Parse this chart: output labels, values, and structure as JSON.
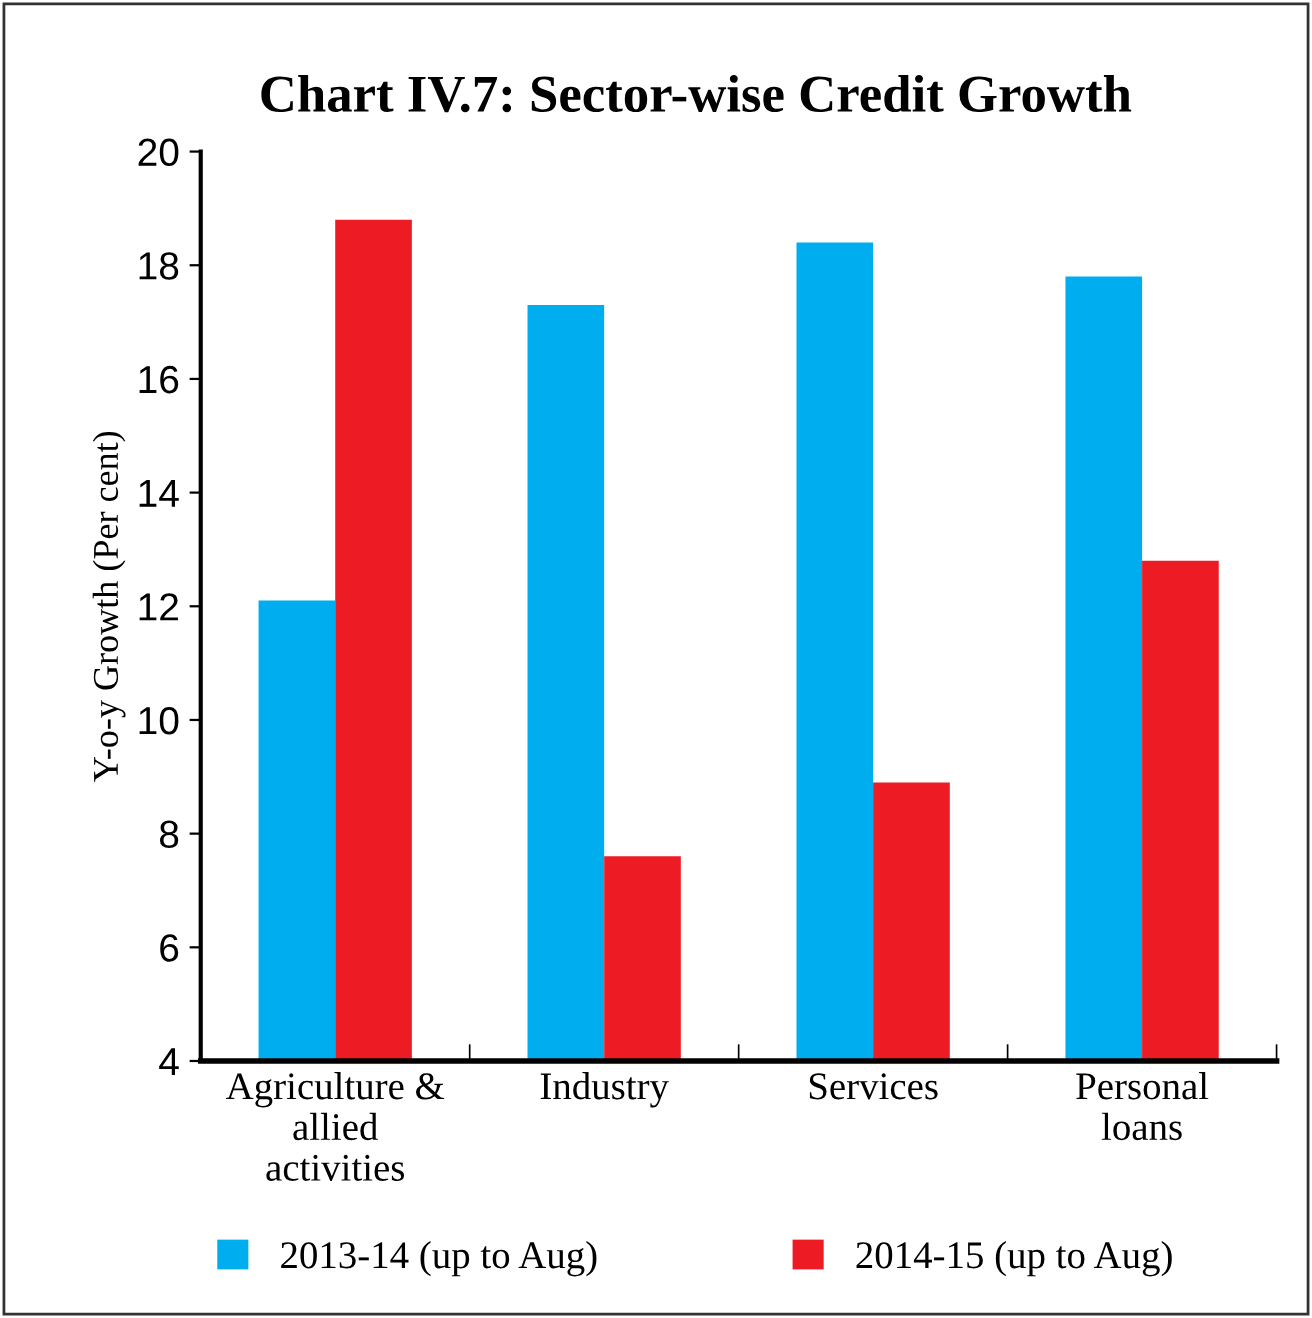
{
  "chart_data": {
    "type": "bar",
    "title": "Chart IV.7: Sector-wise Credit Growth",
    "ylabel": "Y-o-y Growth (Per cent)",
    "categories": [
      "Agriculture &\nallied\nactivities",
      "Industry",
      "Services",
      "Personal\nloans"
    ],
    "series": [
      {
        "name": "2013-14 (up to Aug)",
        "color": "#00aeef",
        "values": [
          12.1,
          17.3,
          18.4,
          17.8
        ]
      },
      {
        "name": "2014-15 (up to Aug)",
        "color": "#ed1c24",
        "values": [
          18.8,
          7.6,
          8.9,
          12.8
        ]
      }
    ],
    "ylim": [
      4,
      20
    ],
    "yticks": [
      4,
      6,
      8,
      10,
      12,
      14,
      16,
      18,
      20
    ],
    "grid": false,
    "legend": "bottom"
  }
}
